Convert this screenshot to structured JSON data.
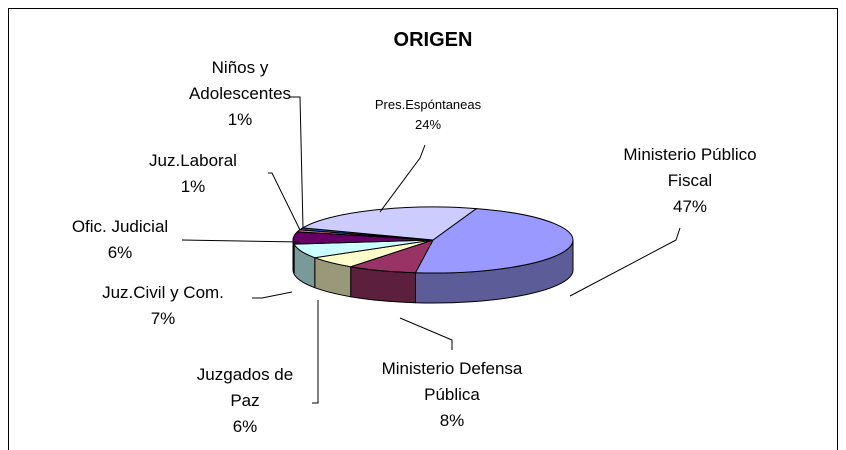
{
  "chart_data": {
    "type": "pie",
    "title": "ORIGEN",
    "categories": [
      "Ministerio Público Fiscal",
      "Ministerio Defensa Pública",
      "Juzgados de Paz",
      "Juz.Civil y Com.",
      "Ofic. Judicial",
      "Juz.Laboral",
      "Niños y Adolescentes",
      "Pres.Espóntaneas"
    ],
    "values": [
      47,
      8,
      6,
      7,
      6,
      1,
      1,
      24
    ],
    "value_labels": [
      "47%",
      "8%",
      "6%",
      "7%",
      "6%",
      "1%",
      "1%",
      "24%"
    ],
    "colors": [
      "#9999ff",
      "#993366",
      "#ffffcc",
      "#ccffff",
      "#660066",
      "#ff8080",
      "#0066cc",
      "#ccccff"
    ]
  }
}
